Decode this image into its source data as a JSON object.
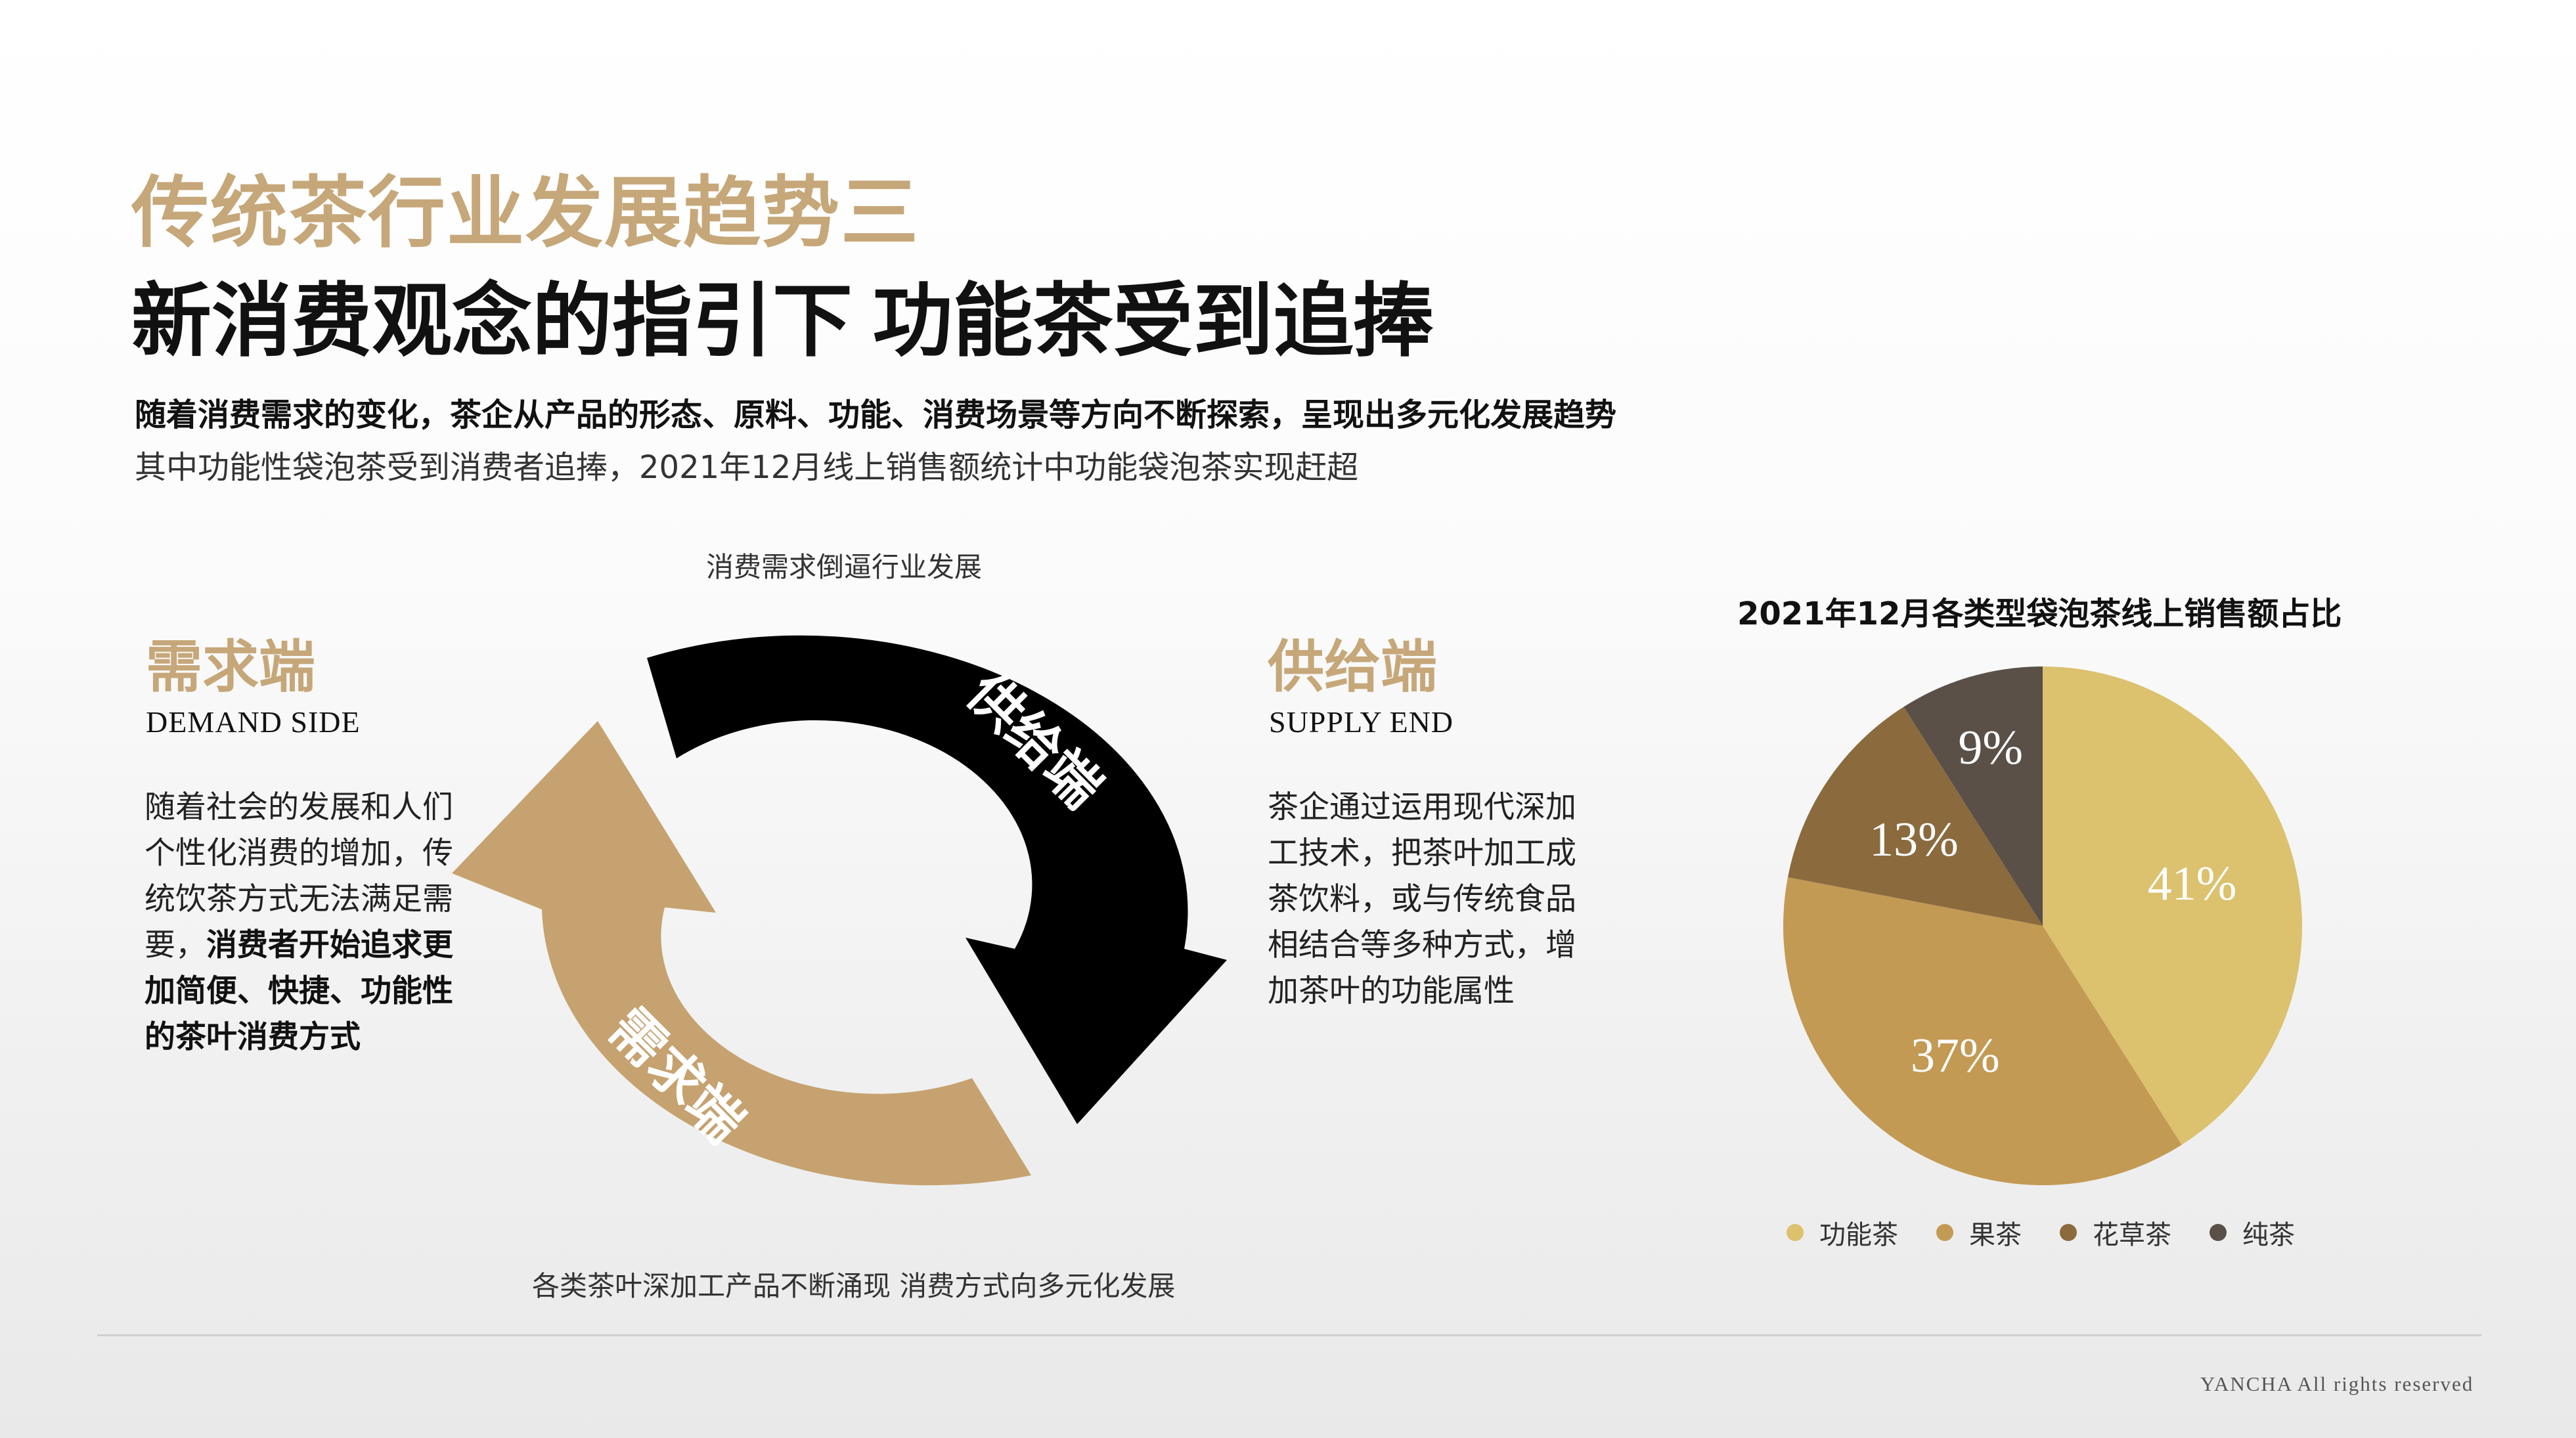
{
  "title": {
    "line1": "传统茶行业发展趋势三",
    "line2": "新消费观念的指引下  功能茶受到追捧"
  },
  "intro": {
    "bold": "随着消费需求的变化，茶企从产品的形态、原料、功能、消费场景等方向不断探索，呈现出多元化发展趋势",
    "plain": "其中功能性袋泡茶受到消费者追捧，2021年12月线上销售额统计中功能袋泡茶实现赶超"
  },
  "demand": {
    "heading": "需求端",
    "english": "DEMAND SIDE",
    "body_plain": "随着社会的发展和人们个性化消费的增加，传统饮茶方式无法满足需要，",
    "body_bold": "消费者开始追求更加简便、快捷、功能性的茶叶消费方式"
  },
  "supply": {
    "heading": "供给端",
    "english": "SUPPLY END",
    "body": "茶企通过运用现代深加工技术，把茶叶加工成茶饮料，或与传统食品相结合等多种方式，增加茶叶的功能属性"
  },
  "cycle": {
    "top_caption": "消费需求倒逼行业发展",
    "bottom_caption": "各类茶叶深加工产品不断涌现  消费方式向多元化发展",
    "black_arrow_label": "供给端",
    "tan_arrow_label": "需求端",
    "black_color": "#000000",
    "tan_color": "#c6a270"
  },
  "chart_data": {
    "type": "pie",
    "title": "2021年12月各类型袋泡茶线上销售额占比",
    "legend_position": "bottom",
    "slices": [
      {
        "name": "功能茶",
        "value": 41,
        "label": "41%",
        "color": "#dcc16e"
      },
      {
        "name": "果茶",
        "value": 37,
        "label": "37%",
        "color": "#c39a54"
      },
      {
        "name": "花草茶",
        "value": 13,
        "label": "13%",
        "color": "#8b6a3e"
      },
      {
        "name": "纯茶",
        "value": 9,
        "label": "9%",
        "color": "#5a5048"
      }
    ]
  },
  "footer": {
    "text": "YANCHA All rights reserved"
  }
}
